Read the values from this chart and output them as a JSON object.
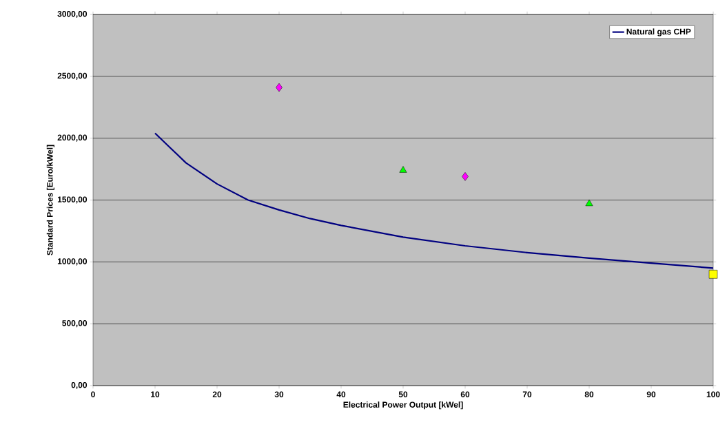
{
  "chart_data": {
    "type": "line",
    "xlabel": "Electrical Power Output [kWel]",
    "ylabel": "Standard Prices [Euro/kWel]",
    "xlim": [
      0,
      100
    ],
    "xticks": [
      0,
      10,
      20,
      30,
      40,
      50,
      60,
      70,
      80,
      90,
      100
    ],
    "ylim": [
      0,
      3000
    ],
    "yticks": [
      {
        "value": 0,
        "label": "0,00"
      },
      {
        "value": 500,
        "label": "500,00"
      },
      {
        "value": 1000,
        "label": "1000,00"
      },
      {
        "value": 1500,
        "label": "1500,00"
      },
      {
        "value": 2000,
        "label": "2000,00"
      },
      {
        "value": 2500,
        "label": "2500,00"
      },
      {
        "value": 3000,
        "label": "3000,00"
      }
    ],
    "grid": "y",
    "legend": "top right",
    "series": [
      {
        "name": "Natural gas CHP",
        "color": "#000080",
        "marker": "none",
        "x": [
          10,
          15,
          20,
          25,
          30,
          35,
          40,
          50,
          60,
          70,
          80,
          90,
          100
        ],
        "values": [
          2040,
          1800,
          1630,
          1500,
          1420,
          1350,
          1295,
          1200,
          1130,
          1075,
          1030,
          990,
          950
        ]
      },
      {
        "type": "scatter",
        "color": "#ff00ff",
        "marker": "diamond",
        "x": [
          30,
          60
        ],
        "values": [
          2410,
          1690
        ]
      },
      {
        "type": "scatter",
        "color": "#00ff00",
        "marker": "triangle",
        "x": [
          50,
          80
        ],
        "values": [
          1740,
          1470
        ]
      },
      {
        "type": "scatter",
        "color": "#ffff00",
        "marker": "square",
        "x": [
          100
        ],
        "values": [
          900
        ]
      }
    ]
  }
}
